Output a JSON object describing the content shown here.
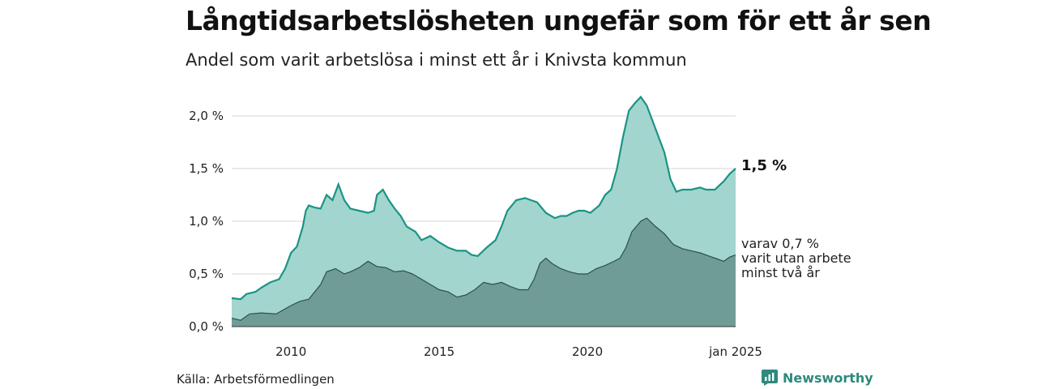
{
  "header": {
    "title": "Långtidsarbetslösheten ungefär som för ett år sen",
    "subtitle": "Andel som varit arbetslösa i minst ett år i Knivsta kommun"
  },
  "footer": {
    "source": "Källa: Arbetsförmedlingen",
    "brand": "Newsworthy"
  },
  "colors": {
    "series_main_line": "#1a9484",
    "series_main_fill": "#a3d5cf",
    "series_sub_line": "#2f4f4a",
    "series_sub_fill": "#6f9d95",
    "grid": "#dddddd",
    "brand": "#2d8a7d"
  },
  "chart_data": {
    "type": "area",
    "title": "Långtidsarbetslösheten ungefär som för ett år sen",
    "subtitle": "Andel som varit arbetslösa i minst ett år i Knivsta kommun",
    "xlabel": "",
    "ylabel": "",
    "x_start": "2008-01",
    "x_end": "2025-01",
    "xlim": [
      2008.0,
      2025.0
    ],
    "ylim": [
      0,
      2.2
    ],
    "y_ticks": [
      {
        "value": 0.0,
        "label": "0,0 %"
      },
      {
        "value": 0.5,
        "label": "0,5 %"
      },
      {
        "value": 1.0,
        "label": "1,0 %"
      },
      {
        "value": 1.5,
        "label": "1,5 %"
      },
      {
        "value": 2.0,
        "label": "2,0 %"
      }
    ],
    "x_ticks": [
      {
        "value": 2010.0,
        "label": "2010"
      },
      {
        "value": 2015.0,
        "label": "2015"
      },
      {
        "value": 2020.0,
        "label": "2020"
      },
      {
        "value": 2025.0,
        "label": "jan 2025"
      }
    ],
    "grid": true,
    "series": [
      {
        "points": [
          [
            2008.0,
            0.27
          ],
          [
            2008.3,
            0.26
          ],
          [
            2008.5,
            0.31
          ],
          [
            2008.8,
            0.33
          ],
          [
            2009.0,
            0.37
          ],
          [
            2009.3,
            0.42
          ],
          [
            2009.6,
            0.45
          ],
          [
            2009.8,
            0.55
          ],
          [
            2010.0,
            0.7
          ],
          [
            2010.2,
            0.76
          ],
          [
            2010.4,
            0.95
          ],
          [
            2010.5,
            1.1
          ],
          [
            2010.6,
            1.15
          ],
          [
            2010.8,
            1.13
          ],
          [
            2011.0,
            1.12
          ],
          [
            2011.2,
            1.25
          ],
          [
            2011.4,
            1.2
          ],
          [
            2011.6,
            1.35
          ],
          [
            2011.8,
            1.2
          ],
          [
            2012.0,
            1.12
          ],
          [
            2012.3,
            1.1
          ],
          [
            2012.6,
            1.08
          ],
          [
            2012.8,
            1.1
          ],
          [
            2012.9,
            1.25
          ],
          [
            2013.1,
            1.3
          ],
          [
            2013.3,
            1.2
          ],
          [
            2013.5,
            1.12
          ],
          [
            2013.7,
            1.05
          ],
          [
            2013.9,
            0.95
          ],
          [
            2014.2,
            0.9
          ],
          [
            2014.4,
            0.82
          ],
          [
            2014.7,
            0.86
          ],
          [
            2015.0,
            0.8
          ],
          [
            2015.3,
            0.75
          ],
          [
            2015.6,
            0.72
          ],
          [
            2015.9,
            0.72
          ],
          [
            2016.1,
            0.68
          ],
          [
            2016.3,
            0.67
          ],
          [
            2016.6,
            0.75
          ],
          [
            2016.9,
            0.82
          ],
          [
            2017.1,
            0.95
          ],
          [
            2017.3,
            1.1
          ],
          [
            2017.6,
            1.2
          ],
          [
            2017.9,
            1.22
          ],
          [
            2018.1,
            1.2
          ],
          [
            2018.3,
            1.18
          ],
          [
            2018.6,
            1.08
          ],
          [
            2018.9,
            1.03
          ],
          [
            2019.1,
            1.05
          ],
          [
            2019.3,
            1.05
          ],
          [
            2019.5,
            1.08
          ],
          [
            2019.7,
            1.1
          ],
          [
            2019.9,
            1.1
          ],
          [
            2020.1,
            1.08
          ],
          [
            2020.4,
            1.15
          ],
          [
            2020.6,
            1.25
          ],
          [
            2020.8,
            1.3
          ],
          [
            2021.0,
            1.5
          ],
          [
            2021.2,
            1.8
          ],
          [
            2021.4,
            2.05
          ],
          [
            2021.6,
            2.12
          ],
          [
            2021.8,
            2.18
          ],
          [
            2022.0,
            2.1
          ],
          [
            2022.2,
            1.95
          ],
          [
            2022.4,
            1.8
          ],
          [
            2022.6,
            1.65
          ],
          [
            2022.8,
            1.4
          ],
          [
            2023.0,
            1.28
          ],
          [
            2023.2,
            1.3
          ],
          [
            2023.5,
            1.3
          ],
          [
            2023.8,
            1.32
          ],
          [
            2024.0,
            1.3
          ],
          [
            2024.3,
            1.3
          ],
          [
            2024.6,
            1.38
          ],
          [
            2024.8,
            1.45
          ],
          [
            2025.0,
            1.5
          ]
        ]
      },
      {
        "points": [
          [
            2008.0,
            0.08
          ],
          [
            2008.3,
            0.06
          ],
          [
            2008.6,
            0.12
          ],
          [
            2009.0,
            0.13
          ],
          [
            2009.5,
            0.12
          ],
          [
            2010.0,
            0.2
          ],
          [
            2010.3,
            0.24
          ],
          [
            2010.6,
            0.26
          ],
          [
            2011.0,
            0.4
          ],
          [
            2011.2,
            0.52
          ],
          [
            2011.5,
            0.55
          ],
          [
            2011.8,
            0.5
          ],
          [
            2012.0,
            0.52
          ],
          [
            2012.3,
            0.56
          ],
          [
            2012.6,
            0.62
          ],
          [
            2012.9,
            0.57
          ],
          [
            2013.2,
            0.56
          ],
          [
            2013.5,
            0.52
          ],
          [
            2013.8,
            0.53
          ],
          [
            2014.1,
            0.5
          ],
          [
            2014.4,
            0.45
          ],
          [
            2014.7,
            0.4
          ],
          [
            2015.0,
            0.35
          ],
          [
            2015.3,
            0.33
          ],
          [
            2015.6,
            0.28
          ],
          [
            2015.9,
            0.3
          ],
          [
            2016.2,
            0.35
          ],
          [
            2016.5,
            0.42
          ],
          [
            2016.8,
            0.4
          ],
          [
            2017.1,
            0.42
          ],
          [
            2017.4,
            0.38
          ],
          [
            2017.7,
            0.35
          ],
          [
            2018.0,
            0.35
          ],
          [
            2018.2,
            0.45
          ],
          [
            2018.4,
            0.6
          ],
          [
            2018.6,
            0.65
          ],
          [
            2018.8,
            0.6
          ],
          [
            2019.1,
            0.55
          ],
          [
            2019.4,
            0.52
          ],
          [
            2019.7,
            0.5
          ],
          [
            2020.0,
            0.5
          ],
          [
            2020.3,
            0.55
          ],
          [
            2020.6,
            0.58
          ],
          [
            2020.9,
            0.62
          ],
          [
            2021.1,
            0.65
          ],
          [
            2021.3,
            0.75
          ],
          [
            2021.5,
            0.9
          ],
          [
            2021.8,
            1.0
          ],
          [
            2022.0,
            1.03
          ],
          [
            2022.3,
            0.95
          ],
          [
            2022.6,
            0.88
          ],
          [
            2022.9,
            0.78
          ],
          [
            2023.2,
            0.74
          ],
          [
            2023.5,
            0.72
          ],
          [
            2023.8,
            0.7
          ],
          [
            2024.1,
            0.67
          ],
          [
            2024.3,
            0.65
          ],
          [
            2024.6,
            0.62
          ],
          [
            2024.8,
            0.66
          ],
          [
            2025.0,
            0.68
          ]
        ]
      }
    ],
    "annotations": {
      "latest_main": "1,5 %",
      "latest_sub_lines": [
        "varav 0,7 %",
        "varit utan arbete",
        "minst två år"
      ]
    }
  }
}
